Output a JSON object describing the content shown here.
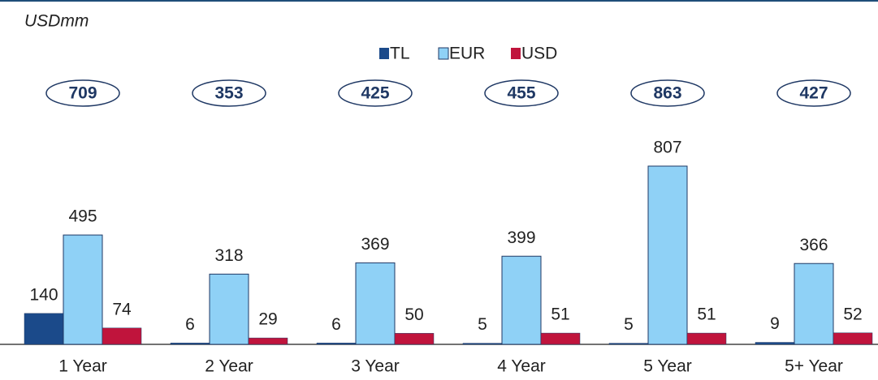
{
  "chart_data": {
    "type": "bar",
    "subtitle": "USDmm",
    "categories": [
      "1 Year",
      "2 Year",
      "3 Year",
      "4 Year",
      "5 Year",
      "5+ Year"
    ],
    "series": [
      {
        "name": "TL",
        "color": "#1b4a8a",
        "values": [
          140,
          6,
          6,
          5,
          5,
          9
        ]
      },
      {
        "name": "EUR",
        "color": "#8fd1f6",
        "values": [
          495,
          318,
          369,
          399,
          807,
          366
        ]
      },
      {
        "name": "USD",
        "color": "#c0143c",
        "values": [
          74,
          29,
          50,
          51,
          51,
          52
        ]
      }
    ],
    "totals": [
      709,
      353,
      425,
      455,
      863,
      427
    ],
    "legend": "top"
  }
}
